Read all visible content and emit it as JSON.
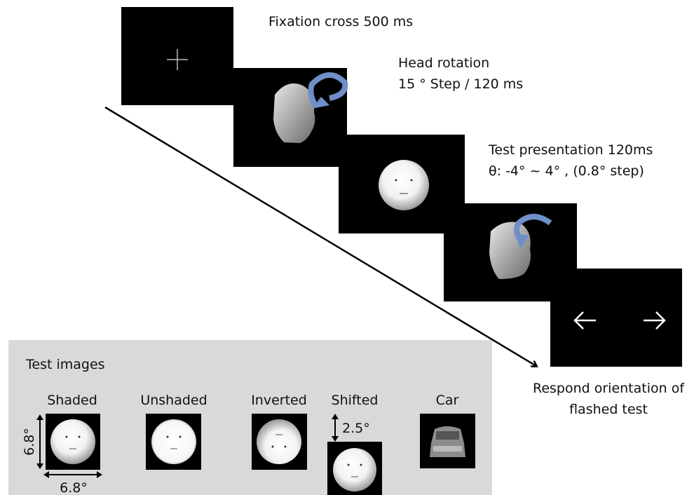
{
  "sequence": {
    "fixation": "Fixation cross 500 ms",
    "rotation": [
      "Head rotation",
      "15 °  Step / 120 ms"
    ],
    "test": [
      "Test presentation 120ms",
      "θ: -4°  ~ 4° , (0.8°  step)"
    ],
    "response": [
      "Respond orientation of",
      "flashed test"
    ]
  },
  "test_images": {
    "title": "Test images",
    "labels": [
      "Shaded",
      "Unshaded",
      "Inverted",
      "Shifted",
      "Car"
    ],
    "size_vertical": "6.8°",
    "size_horizontal": "6.8°",
    "shift": "2.5°"
  }
}
